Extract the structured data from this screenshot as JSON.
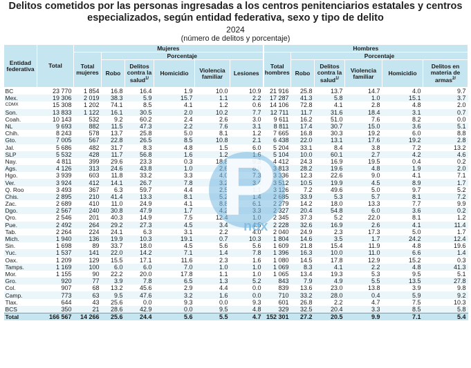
{
  "title_line1": "Delitos cometidos por las personas ingresadas a los centros penitenciarios estatales y centros",
  "title_line2": "especializados, según entidad federativa, sexo y tipo de delito",
  "year": "2024",
  "subtitle": "(número de delitos y porcentaje)",
  "watermark": {
    "letter": "P",
    "text": "nox"
  },
  "headers": {
    "entidad": "Entidad federativa",
    "total": "Total",
    "mujeres": "Mujeres",
    "hombres": "Hombres",
    "porcentaje": "Porcentaje",
    "total_mujeres": "Total mujeres",
    "total_hombres": "Total hombres",
    "robo": "Robo",
    "salud": "Delitos contra la salud",
    "salud_note": "1/",
    "homicidio": "Homicidio",
    "violencia": "Violencia familiar",
    "lesiones": "Lesiones",
    "armas": "Delitos en materia de armas",
    "armas_note": "2/"
  },
  "rows": [
    [
      "BC",
      "23 770",
      "1 854",
      "16.8",
      "16.4",
      "1.9",
      "10.0",
      "10.9",
      "21 916",
      "25.8",
      "13.7",
      "14.7",
      "4.0",
      "9.7"
    ],
    [
      "Mex.",
      "19 306",
      "2 019",
      "38.3",
      "5.9",
      "15.7",
      "1.1",
      "2.2",
      "17 287",
      "41.3",
      "5.8",
      "1.0",
      "15.1",
      "3.7"
    ],
    [
      "CDMX",
      "15 308",
      "1 202",
      "74.1",
      "8.5",
      "4.1",
      "1.2",
      "0.6",
      "14 106",
      "72.8",
      "4.1",
      "2.8",
      "4.8",
      "2.0"
    ],
    [
      "Son.",
      "13 833",
      "1 122",
      "16.1",
      "30.5",
      "2.0",
      "10.2",
      "7.7",
      "12 711",
      "11.7",
      "31.6",
      "18.4",
      "3.1",
      "0.7"
    ],
    [
      "Coah.",
      "10 143",
      "532",
      "9.2",
      "60.2",
      "2.4",
      "2.6",
      "3.0",
      "9 611",
      "16.2",
      "51.0",
      "7.6",
      "8.2",
      "0.0"
    ],
    [
      "NL",
      "9 693",
      "882",
      "11.5",
      "47.3",
      "2.2",
      "7.6",
      "3.1",
      "8 811",
      "17.4",
      "30.7",
      "15.0",
      "3.6",
      "5.1"
    ],
    [
      "Chih.",
      "8 243",
      "578",
      "13.7",
      "25.8",
      "5.0",
      "8.1",
      "1.2",
      "7 665",
      "16.8",
      "30.3",
      "19.2",
      "6.0",
      "8.8"
    ],
    [
      "Gto.",
      "7 005",
      "567",
      "22.8",
      "26.5",
      "8.5",
      "10.8",
      "2.1",
      "6 438",
      "22.0",
      "13.1",
      "17.6",
      "19.2",
      "2.8"
    ],
    [
      "Jal.",
      "5 686",
      "482",
      "31.7",
      "8.3",
      "4.8",
      "1.5",
      "6.0",
      "5 204",
      "33.1",
      "8.4",
      "3.8",
      "7.2",
      "13.2"
    ],
    [
      "SLP",
      "5 532",
      "428",
      "11.7",
      "56.8",
      "1.6",
      "1.2",
      "1.6",
      "5 104",
      "10.0",
      "60.1",
      "2.7",
      "4.2",
      "4.6"
    ],
    [
      "Nay.",
      "4 811",
      "399",
      "29.6",
      "23.3",
      "0.3",
      "18.8",
      "9.3",
      "4 412",
      "24.3",
      "16.9",
      "19.5",
      "0.4",
      "0.2"
    ],
    [
      "Ags.",
      "4 126",
      "313",
      "24.6",
      "43.8",
      "1.0",
      "2.6",
      "8.9",
      "3 813",
      "28.2",
      "19.6",
      "4.8",
      "1.9",
      "2.0"
    ],
    [
      "Hgo.",
      "3 939",
      "603",
      "11.8",
      "33.2",
      "3.3",
      "4.0",
      "7.3",
      "3 336",
      "12.3",
      "22.6",
      "9.0",
      "4.1",
      "7.1"
    ],
    [
      "Ver.",
      "3 924",
      "412",
      "14.1",
      "26.7",
      "7.8",
      "3.2",
      "3.4",
      "3 512",
      "10.5",
      "19.9",
      "4.5",
      "8.9",
      "1.7"
    ],
    [
      "Q. Roo",
      "3 493",
      "367",
      "6.3",
      "59.7",
      "4.4",
      "2.5",
      "1.1",
      "3 126",
      "7.2",
      "49.6",
      "5.0",
      "9.7",
      "5.2"
    ],
    [
      "Chis.",
      "2 895",
      "210",
      "41.4",
      "13.3",
      "8.1",
      "5.2",
      "1.4",
      "2 685",
      "33.9",
      "5.3",
      "5.7",
      "8.1",
      "7.2"
    ],
    [
      "Zac.",
      "2 689",
      "410",
      "11.0",
      "24.9",
      "4.1",
      "8.8",
      "6.1",
      "2 279",
      "14.2",
      "18.0",
      "13.3",
      "7.7",
      "9.9"
    ],
    [
      "Dgo.",
      "2 567",
      "240",
      "30.8",
      "47.9",
      "1.7",
      "4.2",
      "3.3",
      "2 327",
      "20.4",
      "54.8",
      "6.0",
      "3.6",
      "0.2"
    ],
    [
      "Qro.",
      "2 546",
      "201",
      "40.3",
      "14.9",
      "7.5",
      "12.4",
      "1.0",
      "2 345",
      "37.3",
      "5.2",
      "22.0",
      "8.1",
      "1.2"
    ],
    [
      "Pue.",
      "2 492",
      "264",
      "29.2",
      "27.3",
      "4.5",
      "3.4",
      "4.5",
      "2 228",
      "32.6",
      "16.9",
      "2.6",
      "4.1",
      "11.4"
    ],
    [
      "Tab.",
      "2 264",
      "224",
      "24.1",
      "6.3",
      "3.1",
      "2.2",
      "4.0",
      "2 040",
      "24.9",
      "2.3",
      "17.3",
      "5.0",
      "1.7"
    ],
    [
      "Mich.",
      "1 940",
      "136",
      "19.9",
      "10.3",
      "19.1",
      "0.7",
      "10.3",
      "1 804",
      "14.6",
      "3.5",
      "1.7",
      "24.2",
      "12.4"
    ],
    [
      "Sin.",
      "1 698",
      "89",
      "33.7",
      "18.0",
      "4.5",
      "5.6",
      "5.6",
      "1 609",
      "21.8",
      "15.4",
      "11.9",
      "4.8",
      "19.6"
    ],
    [
      "Yuc.",
      "1 537",
      "141",
      "22.0",
      "14.2",
      "7.1",
      "1.4",
      "7.8",
      "1 396",
      "16.3",
      "10.0",
      "11.0",
      "6.6",
      "1.4"
    ],
    [
      "Oax.",
      "1 209",
      "129",
      "15.5",
      "17.1",
      "11.6",
      "2.3",
      "1.6",
      "1 080",
      "14.5",
      "17.8",
      "12.9",
      "15.2",
      "0.3"
    ],
    [
      "Tamps.",
      "1 169",
      "100",
      "6.0",
      "6.0",
      "7.0",
      "1.0",
      "1.0",
      "1 069",
      "8.3",
      "4.1",
      "2.2",
      "4.8",
      "41.3"
    ],
    [
      "Mor.",
      "1 155",
      "90",
      "22.2",
      "20.0",
      "17.8",
      "1.1",
      "1.0",
      "1 065",
      "13.4",
      "19.3",
      "5.3",
      "9.5",
      "5.1"
    ],
    [
      "Gro.",
      "920",
      "77",
      "3.9",
      "7.8",
      "6.5",
      "1.3",
      "5.2",
      "843",
      "7.9",
      "4.9",
      "5.5",
      "13.5",
      "27.8"
    ],
    [
      "Col.",
      "907",
      "68",
      "13.2",
      "45.6",
      "2.9",
      "4.4",
      "0.0",
      "839",
      "13.6",
      "23.0",
      "13.8",
      "3.9",
      "9.8"
    ],
    [
      "Camp.",
      "773",
      "63",
      "9.5",
      "47.6",
      "3.2",
      "1.6",
      "0.0",
      "710",
      "33.2",
      "28.0",
      "0.4",
      "5.9",
      "9.2"
    ],
    [
      "Tlax.",
      "644",
      "43",
      "25.6",
      "0.0",
      "9.3",
      "0.0",
      "9.3",
      "601",
      "26.8",
      "2.2",
      "4.7",
      "7.5",
      "10.3"
    ],
    [
      "BCS",
      "350",
      "21",
      "28.6",
      "42.9",
      "0.0",
      "9.5",
      "4.8",
      "329",
      "32.5",
      "20.4",
      "3.3",
      "8.5",
      "5.8"
    ]
  ],
  "total_row": [
    "Total",
    "166 567",
    "14 266",
    "25.6",
    "24.4",
    "5.6",
    "5.5",
    "4.7",
    "152 301",
    "27.2",
    "20.5",
    "9.9",
    "7.1",
    "5.4"
  ]
}
